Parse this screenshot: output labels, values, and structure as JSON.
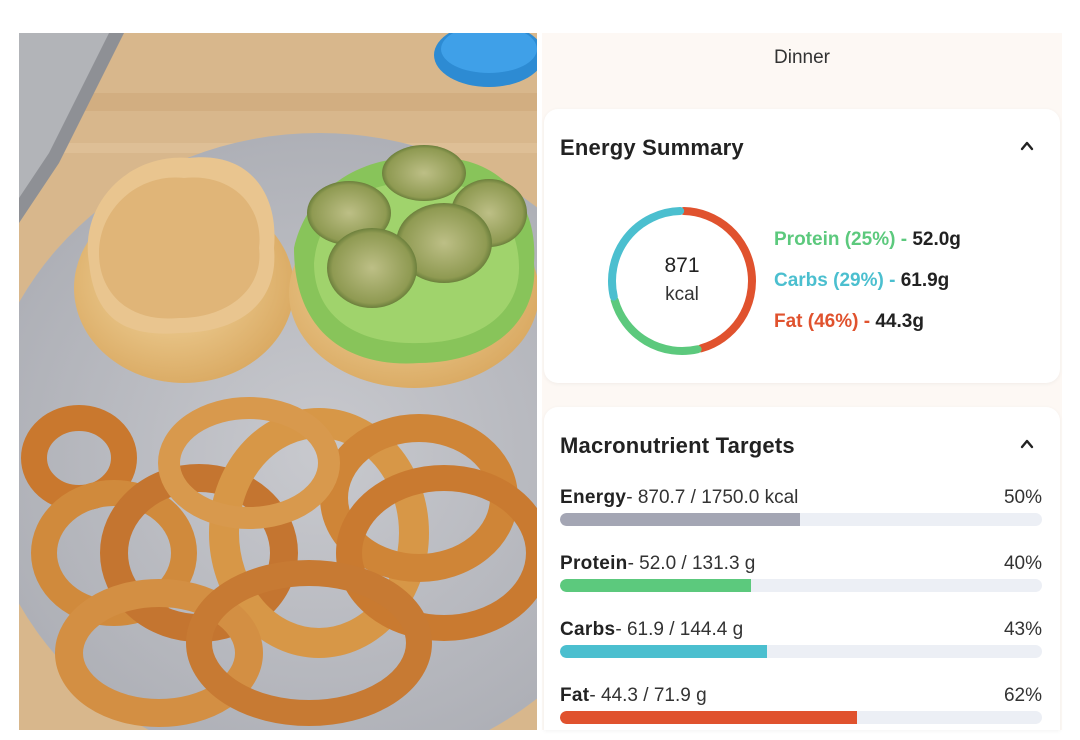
{
  "meal": {
    "title": "Dinner"
  },
  "energy_summary": {
    "title": "Energy Summary",
    "calories": "871",
    "unit": "kcal",
    "colors": {
      "protein": "#5cc97d",
      "carbs": "#4bbfcf",
      "fat": "#e0522e"
    },
    "macros": [
      {
        "label": "Protein (25%) - ",
        "amount": "52.0g",
        "percent": 25
      },
      {
        "label": "Carbs (29%) - ",
        "amount": "61.9g",
        "percent": 29
      },
      {
        "label": "Fat (46%) - ",
        "amount": "44.3g",
        "percent": 46
      }
    ]
  },
  "macro_targets": {
    "title": "Macronutrient Targets",
    "items": [
      {
        "name": "Energy",
        "values": "- 870.7 / 1750.0 kcal",
        "percent_label": "50%",
        "fraction": 0.497,
        "color": "#a4a6b4"
      },
      {
        "name": "Protein",
        "values": "- 52.0 / 131.3 g",
        "percent_label": "40%",
        "fraction": 0.396,
        "color": "#5cc97d"
      },
      {
        "name": "Carbs",
        "values": "- 61.9 / 144.4 g",
        "percent_label": "43%",
        "fraction": 0.429,
        "color": "#4bbfcf"
      },
      {
        "name": "Fat",
        "values": "- 44.3 / 71.9 g",
        "percent_label": "62%",
        "fraction": 0.616,
        "color": "#e0522e"
      }
    ]
  }
}
